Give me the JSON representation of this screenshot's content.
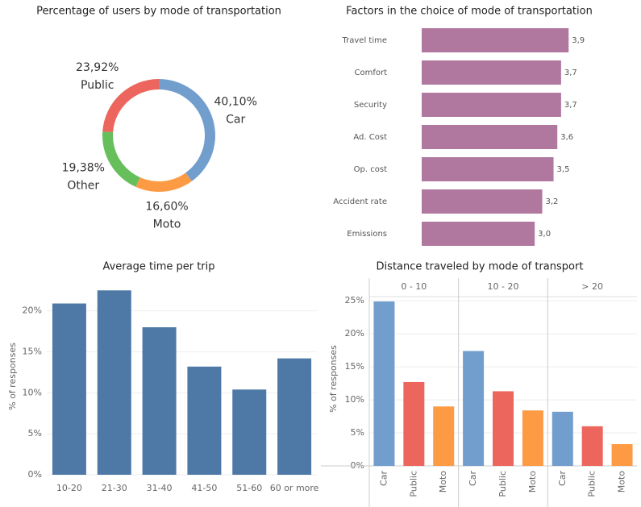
{
  "chart_data": [
    {
      "type": "donut",
      "title": "Percentage of users by mode of transportation",
      "categories": [
        "Car",
        "Moto",
        "Other",
        "Public"
      ],
      "values": [
        40.1,
        16.6,
        19.38,
        23.92
      ],
      "value_labels": [
        "40,10%",
        "16,60%",
        "19,38%",
        "23,92%"
      ],
      "colors": [
        "#729ece",
        "#fd9b45",
        "#67bf5c",
        "#ed665d"
      ]
    },
    {
      "type": "hbar",
      "title": "Factors in the choice of mode of transportation",
      "categories": [
        "Travel time",
        "Comfort",
        "Security",
        "Ad. Cost",
        "Op. cost",
        "Accident rate",
        "Emissions"
      ],
      "values": [
        3.9,
        3.7,
        3.7,
        3.6,
        3.5,
        3.2,
        3.0
      ],
      "value_labels": [
        "3,9",
        "3,7",
        "3,7",
        "3,6",
        "3,5",
        "3,2",
        "3,0"
      ],
      "color": "#b0789f",
      "xlim": [
        0,
        5.5
      ]
    },
    {
      "type": "bar",
      "title": "Average time per trip",
      "ylabel": "% of responses",
      "categories": [
        "10-20",
        "21-30",
        "31-40",
        "41-50",
        "51-60",
        "60 or more"
      ],
      "values": [
        20.9,
        22.5,
        18.0,
        13.2,
        10.4,
        14.2
      ],
      "color": "#4e79a7",
      "ylim": [
        0,
        24
      ],
      "yticks": [
        {
          "value": 0,
          "label": "0%"
        },
        {
          "value": 5,
          "label": "5%"
        },
        {
          "value": 10,
          "label": "10%"
        },
        {
          "value": 15,
          "label": "15%"
        },
        {
          "value": 20,
          "label": "20%"
        }
      ],
      "grid": true
    },
    {
      "type": "facet-bar",
      "title": "Distance traveled by mode of transport",
      "ylabel": "% of responses",
      "categories": [
        "Car",
        "Public",
        "Moto"
      ],
      "colors": [
        "#729ece",
        "#ed665d",
        "#fd9b45"
      ],
      "facets": [
        {
          "name": "0 - 10",
          "values": [
            24.9,
            12.7,
            9.0
          ]
        },
        {
          "name": "10 - 20",
          "values": [
            17.4,
            11.3,
            8.4
          ]
        },
        {
          "name": "> 20",
          "values": [
            8.2,
            6.0,
            3.3
          ]
        }
      ],
      "ylim": [
        0,
        26
      ],
      "yticks": [
        {
          "value": 0,
          "label": "0%"
        },
        {
          "value": 5,
          "label": "5%"
        },
        {
          "value": 10,
          "label": "10%"
        },
        {
          "value": 15,
          "label": "15%"
        },
        {
          "value": 20,
          "label": "20%"
        },
        {
          "value": 25,
          "label": "25%"
        }
      ],
      "grid": true
    }
  ]
}
